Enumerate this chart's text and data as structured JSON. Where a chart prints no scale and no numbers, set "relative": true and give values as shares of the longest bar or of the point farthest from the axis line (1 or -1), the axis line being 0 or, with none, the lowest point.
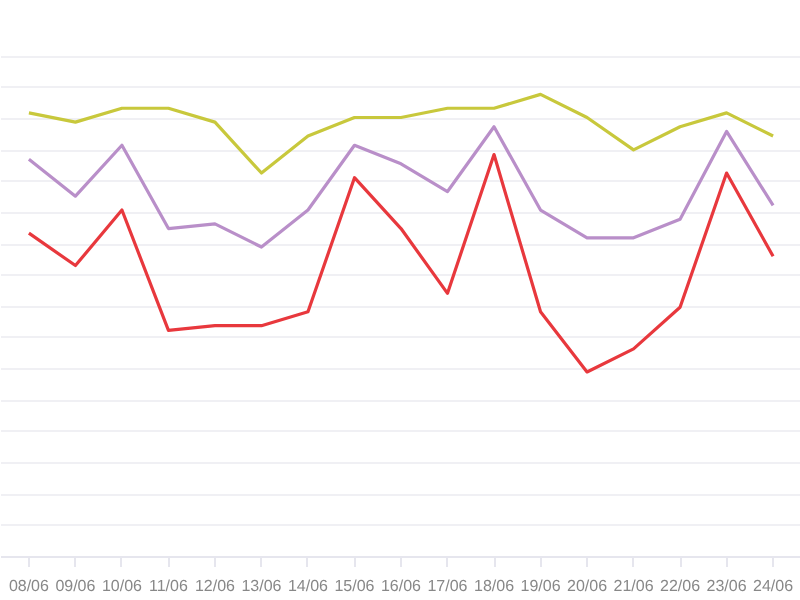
{
  "chart_data": {
    "type": "line",
    "relative": true,
    "grid": "y",
    "marker": "none",
    "line_style": "solid",
    "categories": [
      "08/06",
      "09/06",
      "10/06",
      "11/06",
      "12/06",
      "13/06",
      "14/06",
      "15/06",
      "16/06",
      "17/06",
      "18/06",
      "19/06",
      "20/06",
      "21/06",
      "22/06",
      "23/06",
      "24/06"
    ],
    "series": [
      {
        "color": "#c8c83c",
        "values": [
          0.96,
          0.94,
          0.97,
          0.97,
          0.94,
          0.83,
          0.91,
          0.95,
          0.95,
          0.97,
          0.97,
          1,
          0.95,
          0.88,
          0.93,
          0.96,
          0.91
        ]
      },
      {
        "color": "#b98fc9",
        "values": [
          0.86,
          0.78,
          0.89,
          0.71,
          0.72,
          0.67,
          0.75,
          0.89,
          0.85,
          0.79,
          0.93,
          0.75,
          0.69,
          0.69,
          0.73,
          0.92,
          0.76
        ]
      },
      {
        "color": "#e8383d",
        "values": [
          0.7,
          0.63,
          0.75,
          0.49,
          0.5,
          0.5,
          0.53,
          0.82,
          0.71,
          0.57,
          0.87,
          0.53,
          0.4,
          0.45,
          0.54,
          0.83,
          0.65
        ]
      }
    ]
  }
}
